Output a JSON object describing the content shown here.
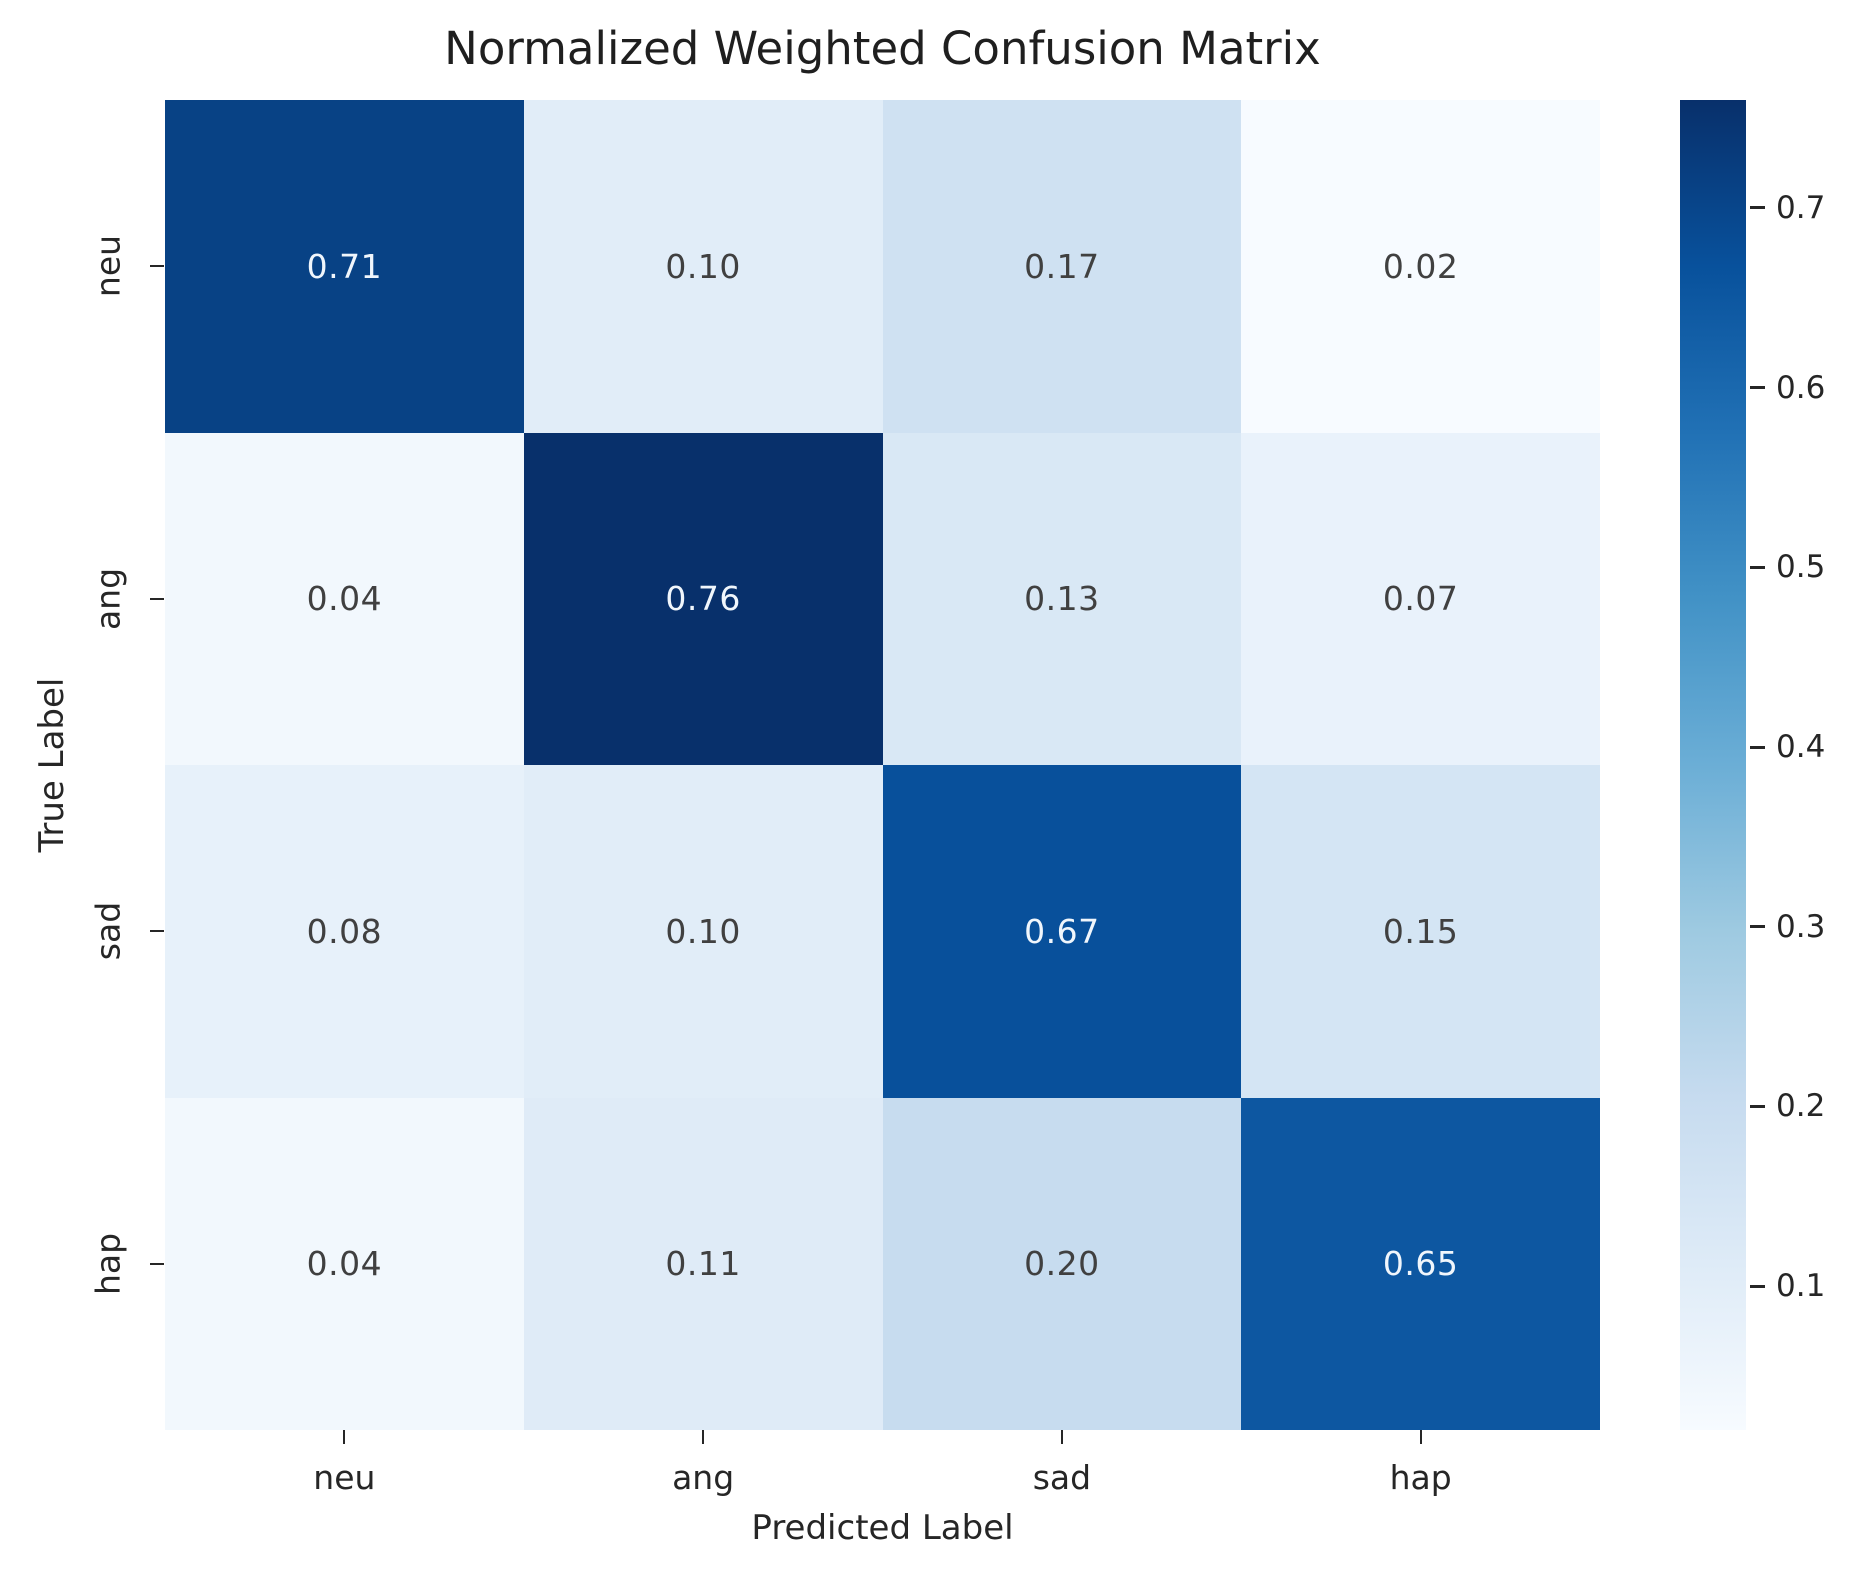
{
  "figure": {
    "title": "Normalized Weighted Confusion Matrix",
    "xlabel": "Predicted Label",
    "ylabel": "True Label"
  },
  "chart_data": {
    "type": "heatmap",
    "title": "Normalized Weighted Confusion Matrix",
    "xlabel": "Predicted Label",
    "ylabel": "True Label",
    "x_categories": [
      "neu",
      "ang",
      "sad",
      "hap"
    ],
    "y_categories": [
      "neu",
      "ang",
      "sad",
      "hap"
    ],
    "matrix": [
      [
        0.71,
        0.1,
        0.17,
        0.02
      ],
      [
        0.04,
        0.76,
        0.13,
        0.07
      ],
      [
        0.08,
        0.1,
        0.67,
        0.15
      ],
      [
        0.04,
        0.11,
        0.2,
        0.65
      ]
    ],
    "value_decimals": 2,
    "colormap": {
      "name": "Blues",
      "vmin": 0.02,
      "vmax": 0.76,
      "stops": [
        "#f7fbff",
        "#deebf7",
        "#c6dbef",
        "#9ecae1",
        "#6baed6",
        "#4292c6",
        "#2171b5",
        "#08519c",
        "#08306b"
      ]
    },
    "colorbar": {
      "ticks": [
        0.1,
        0.2,
        0.3,
        0.4,
        0.5,
        0.6,
        0.7
      ],
      "tick_labels": [
        "0.1",
        "0.2",
        "0.3",
        "0.4",
        "0.5",
        "0.6",
        "0.7"
      ],
      "position": "right"
    },
    "grid": false,
    "annotation_color_dark": "#404040",
    "annotation_color_light": "#f0f6fc"
  }
}
